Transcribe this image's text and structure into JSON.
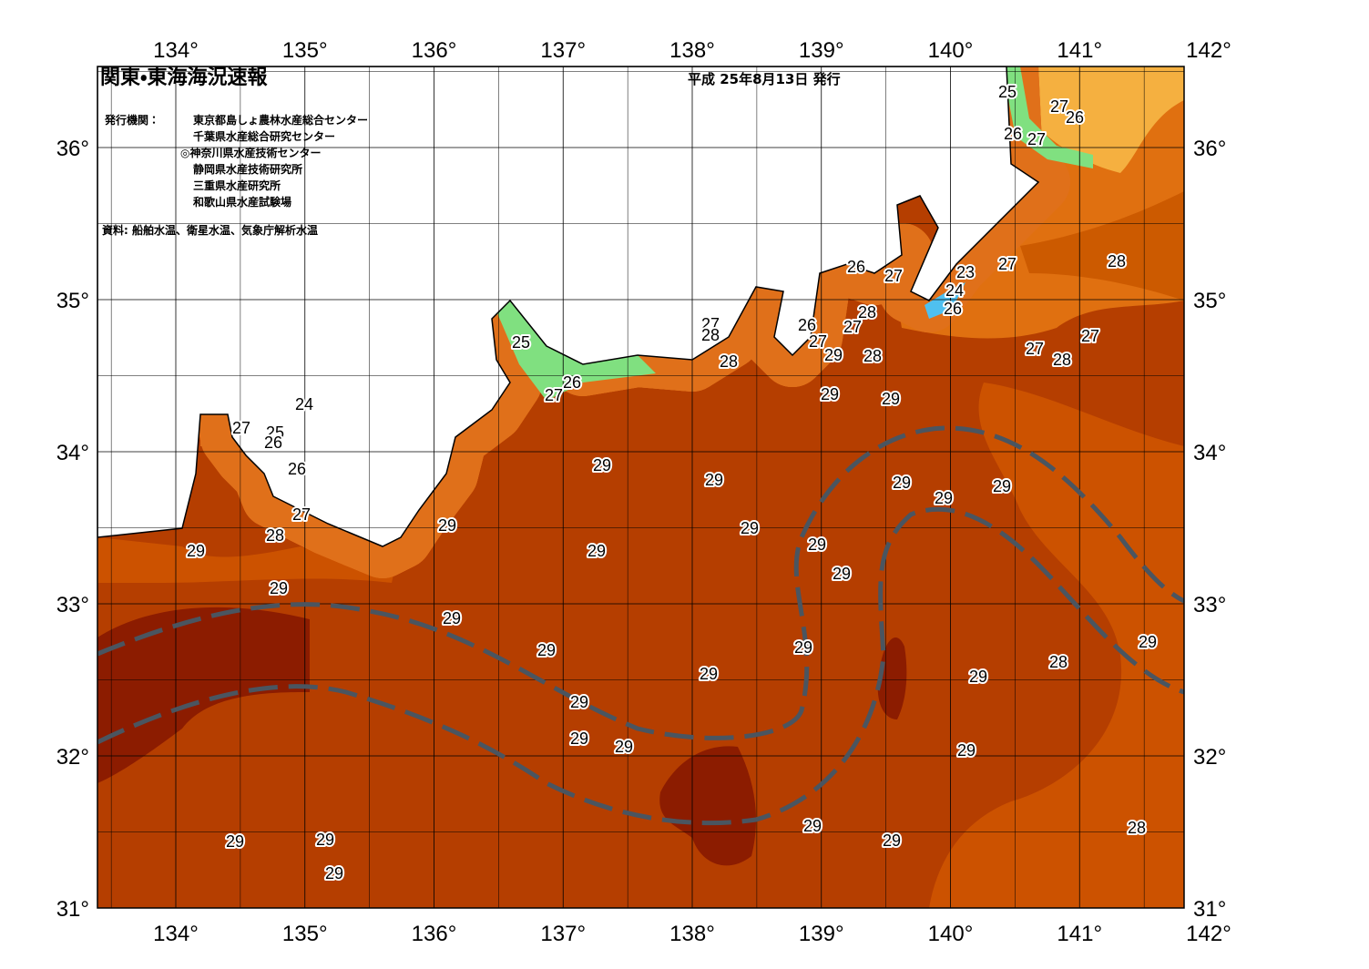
{
  "header": {
    "title": "関東・東海海況速報",
    "issued": "平成 25年8月13日 発行"
  },
  "agencies": {
    "label": "発行機関：",
    "items": [
      "東京都島しょ農林水産総合センター",
      "千葉県水産総合研究センター",
      "◎神奈川県水産技術センター",
      "静岡県水産技術研究所",
      "三重県水産研究所",
      "和歌山県水産試験場"
    ]
  },
  "source": "資料: 船舶水温、衛星水温、気象庁解析水温",
  "longitude_labels": [
    "134°",
    "135°",
    "136°",
    "137°",
    "138°",
    "139°",
    "140°",
    "141°",
    "142°"
  ],
  "latitude_labels": [
    "36°",
    "35°",
    "34°",
    "33°",
    "32°",
    "31°"
  ],
  "contour_labels": [
    25,
    27,
    26,
    26,
    27,
    26,
    27,
    23,
    27,
    28,
    24,
    26,
    27,
    28,
    26,
    27,
    27,
    28,
    29,
    28,
    25,
    28,
    27,
    27,
    28,
    26,
    27,
    24,
    29,
    29,
    27,
    25,
    26,
    26,
    29,
    29,
    29,
    29,
    29,
    27,
    29,
    29,
    28,
    29,
    29,
    29,
    29,
    29,
    29,
    29,
    29,
    29,
    28,
    29,
    29,
    29,
    29,
    29,
    29,
    29,
    28,
    29,
    29,
    29,
    29
  ]
}
